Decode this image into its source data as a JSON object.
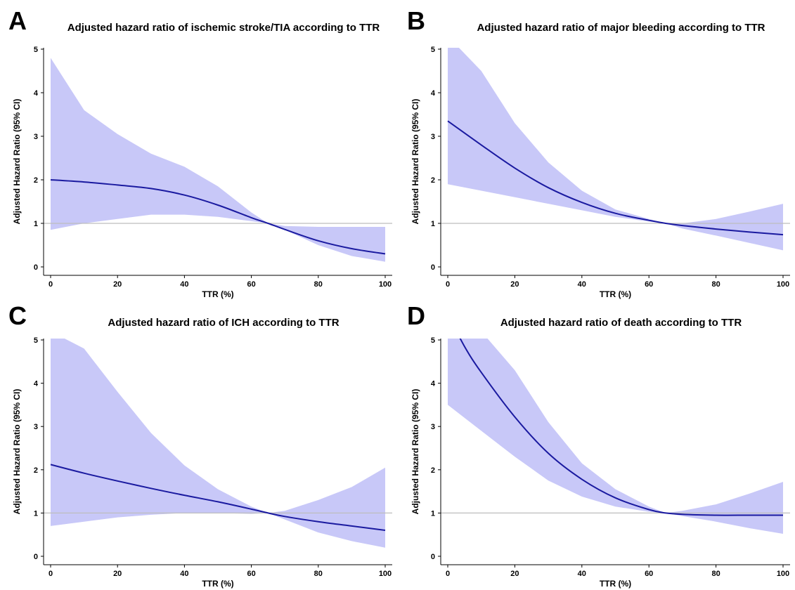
{
  "figure": {
    "background": "#ffffff",
    "band_color": "#c8c8f8",
    "line_color": "#1a1aa0",
    "reference_line_color": "#bdbdbd"
  },
  "chart_data": [
    {
      "panel": "A",
      "type": "line",
      "title": "Adjusted hazard ratio of ischemic stroke/TIA according to TTR",
      "xlabel": "TTR (%)",
      "ylabel": "Adjusted Hazard Ratio (95% CI)",
      "xlim": [
        0,
        100
      ],
      "ylim": [
        0,
        5
      ],
      "xticks": [
        "0",
        "20",
        "40",
        "60",
        "80",
        "100"
      ],
      "yticks": [
        "0",
        "1",
        "2",
        "3",
        "4",
        "5"
      ],
      "reference_line": 1,
      "grid": false,
      "series": [
        {
          "x": [
            0,
            10,
            20,
            30,
            40,
            50,
            60,
            65,
            70,
            80,
            90,
            100
          ],
          "y": [
            2.0,
            1.95,
            1.88,
            1.8,
            1.65,
            1.42,
            1.13,
            1.0,
            0.86,
            0.6,
            0.42,
            0.3
          ],
          "lower": [
            0.85,
            1.0,
            1.1,
            1.2,
            1.2,
            1.15,
            1.05,
            1.0,
            0.85,
            0.5,
            0.25,
            0.12
          ],
          "upper": [
            4.8,
            3.6,
            3.05,
            2.6,
            2.3,
            1.85,
            1.25,
            1.0,
            0.94,
            0.92,
            0.92,
            0.92
          ]
        }
      ]
    },
    {
      "panel": "B",
      "type": "line",
      "title": "Adjusted hazard ratio of major bleeding according to TTR",
      "xlabel": "TTR (%)",
      "ylabel": "Adjusted Hazard Ratio (95% CI)",
      "xlim": [
        0,
        100
      ],
      "ylim": [
        0,
        5
      ],
      "xticks": [
        "0",
        "20",
        "40",
        "60",
        "80",
        "100"
      ],
      "yticks": [
        "0",
        "1",
        "2",
        "3",
        "4",
        "5"
      ],
      "reference_line": 1,
      "grid": false,
      "series": [
        {
          "x": [
            0,
            10,
            20,
            30,
            40,
            50,
            60,
            65,
            70,
            80,
            90,
            100
          ],
          "y": [
            3.35,
            2.8,
            2.27,
            1.82,
            1.48,
            1.23,
            1.07,
            1.0,
            0.95,
            0.87,
            0.8,
            0.74
          ],
          "lower": [
            1.9,
            1.75,
            1.6,
            1.45,
            1.3,
            1.15,
            1.04,
            1.0,
            0.88,
            0.72,
            0.55,
            0.38
          ],
          "upper": [
            5.3,
            4.5,
            3.3,
            2.4,
            1.75,
            1.32,
            1.1,
            1.0,
            1.0,
            1.1,
            1.27,
            1.45
          ]
        }
      ]
    },
    {
      "panel": "C",
      "type": "line",
      "title": "Adjusted hazard ratio of ICH according to TTR",
      "xlabel": "TTR (%)",
      "ylabel": "Adjusted Hazard Ratio (95% CI)",
      "xlim": [
        0,
        100
      ],
      "ylim": [
        0,
        5
      ],
      "xticks": [
        "0",
        "20",
        "40",
        "60",
        "80",
        "100"
      ],
      "yticks": [
        "0",
        "1",
        "2",
        "3",
        "4",
        "5"
      ],
      "reference_line": 1,
      "grid": false,
      "series": [
        {
          "x": [
            0,
            10,
            20,
            30,
            40,
            50,
            60,
            65,
            70,
            80,
            90,
            100
          ],
          "y": [
            2.12,
            1.92,
            1.74,
            1.57,
            1.41,
            1.26,
            1.09,
            1.0,
            0.92,
            0.8,
            0.7,
            0.6
          ],
          "lower": [
            0.7,
            0.8,
            0.9,
            0.96,
            1.0,
            1.0,
            0.98,
            1.0,
            0.85,
            0.55,
            0.35,
            0.2
          ],
          "upper": [
            5.2,
            4.8,
            3.8,
            2.85,
            2.1,
            1.55,
            1.15,
            1.0,
            1.05,
            1.3,
            1.6,
            2.05
          ]
        }
      ]
    },
    {
      "panel": "D",
      "type": "line",
      "title": "Adjusted hazard ratio of death according to TTR",
      "xlabel": "TTR (%)",
      "ylabel": "Adjusted Hazard Ratio (95% CI)",
      "xlim": [
        0,
        100
      ],
      "ylim": [
        0,
        5
      ],
      "xticks": [
        "0",
        "20",
        "40",
        "60",
        "80",
        "100"
      ],
      "yticks": [
        "0",
        "1",
        "2",
        "3",
        "4",
        "5"
      ],
      "reference_line": 1,
      "grid": false,
      "series": [
        {
          "x": [
            0,
            5,
            10,
            20,
            30,
            40,
            50,
            60,
            65,
            70,
            80,
            90,
            100
          ],
          "y": [
            5.6,
            4.85,
            4.25,
            3.22,
            2.38,
            1.78,
            1.35,
            1.08,
            1.0,
            0.97,
            0.95,
            0.95,
            0.95
          ],
          "lower": [
            3.5,
            3.2,
            2.9,
            2.3,
            1.75,
            1.38,
            1.15,
            1.03,
            1.0,
            0.93,
            0.8,
            0.65,
            0.52
          ],
          "upper": [
            5.2,
            5.2,
            5.2,
            4.3,
            3.1,
            2.15,
            1.55,
            1.15,
            1.0,
            1.05,
            1.2,
            1.45,
            1.72
          ]
        }
      ]
    }
  ]
}
